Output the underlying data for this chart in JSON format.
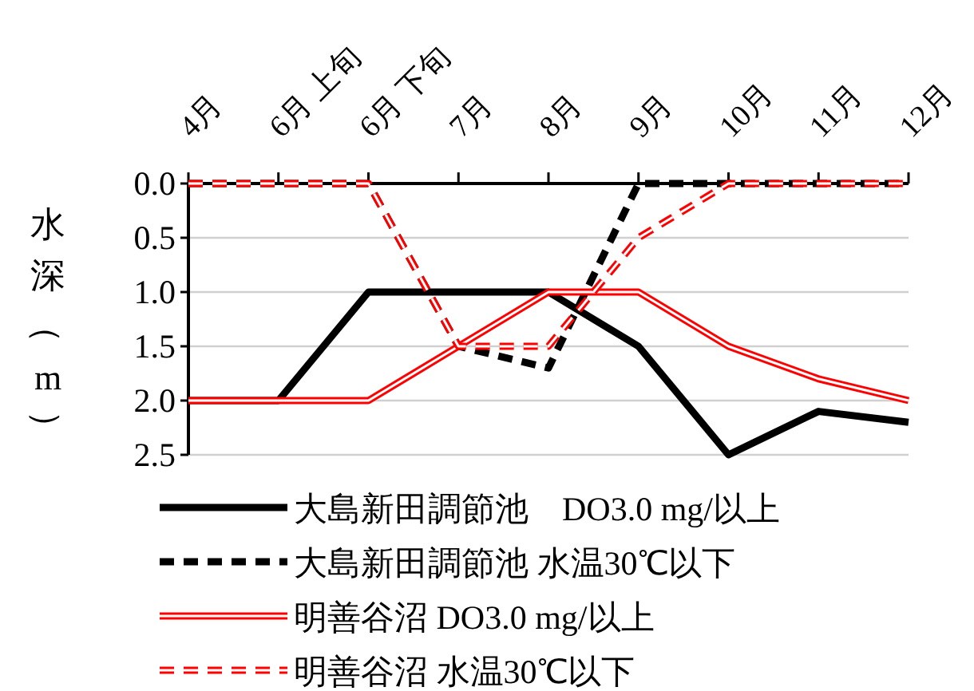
{
  "chart_data": {
    "type": "line",
    "ylabel": "水深（m）",
    "categories": [
      "4月",
      "6月 上旬",
      "6月 下旬",
      "7月",
      "8月",
      "9月",
      "10月",
      "11月",
      "12月"
    ],
    "ylim": [
      2.5,
      0
    ],
    "yticks": [
      {
        "value": 0,
        "label": "0.0"
      },
      {
        "value": 0.5,
        "label": "0.5"
      },
      {
        "value": 1,
        "label": "1.0"
      },
      {
        "value": 1.5,
        "label": "1.5"
      },
      {
        "value": 2,
        "label": "2.0"
      },
      {
        "value": 2.5,
        "label": "2.5"
      }
    ],
    "grid": "y",
    "legend": "bottom",
    "marker": "none",
    "series": [
      {
        "name": "大島新田調節池　DO3.0 mg/以上",
        "color": "#000000",
        "line_style": "solid",
        "values": [
          2,
          2,
          1,
          1,
          1,
          1.5,
          2.5,
          2.1,
          2.2
        ]
      },
      {
        "name": "大島新田調節池 水温30℃以下",
        "color": "#000000",
        "line_style": "dashed",
        "values": [
          0,
          0,
          0,
          1.5,
          1.7,
          0,
          0,
          0,
          0
        ]
      },
      {
        "name": "明善谷沼 DO3.0 mg/以上",
        "color": "#ff0000",
        "line_style": "solid",
        "values": [
          2,
          2,
          2,
          1.5,
          1,
          1,
          1.5,
          1.8,
          2
        ]
      },
      {
        "name": "明善谷沼 水温30℃以下",
        "color": "#ff0000",
        "line_style": "dashed",
        "values": [
          0,
          0,
          0,
          1.5,
          1.5,
          0.5,
          0,
          0,
          0
        ]
      }
    ]
  }
}
